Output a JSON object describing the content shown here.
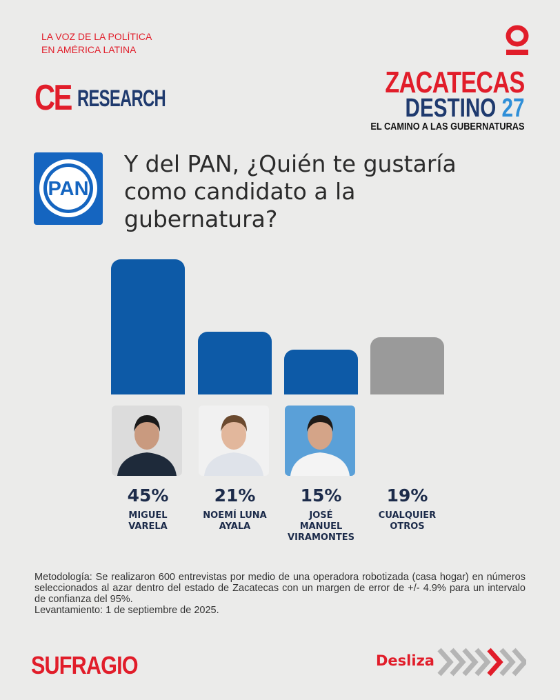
{
  "header": {
    "tagline_1": "LA VOZ DE LA POLÍTICA",
    "tagline_2": "EN AMÉRICA LATINA",
    "ce_logo_ce": "CE",
    "ce_logo_research": "RESEARCH",
    "series_title_1": "ZACATECAS",
    "series_title_2": "DESTINO",
    "series_title_num": "27",
    "series_subtitle": "EL CAMINO A LAS GUBERNATURAS"
  },
  "party_logo": "PAN",
  "chart_data": {
    "type": "bar",
    "title": "Y del PAN, ¿Quién te gustaría como candidato a la gubernatura?",
    "categories": [
      "MIGUEL VARELA",
      "NOEMÍ LUNA AYALA",
      "JOSÉ MANUEL VIRAMONTES",
      "CUALQUIER OTROS"
    ],
    "name_lines": [
      [
        "MIGUEL",
        "VARELA"
      ],
      [
        "NOEMÍ LUNA",
        "AYALA"
      ],
      [
        "JOSÉ",
        "MANUEL",
        "VIRAMONTES"
      ],
      [
        "CUALQUIER",
        "OTROS"
      ]
    ],
    "values": [
      45,
      21,
      15,
      19
    ],
    "labels": [
      "45%",
      "21%",
      "15%",
      "19%"
    ],
    "colors": [
      "#0d5aa7",
      "#0d5aa7",
      "#0d5aa7",
      "#9a9a9a"
    ],
    "ylim": [
      0,
      45
    ],
    "unit": "%",
    "grid": false
  },
  "methodology": "Metodología: Se realizaron 600 entrevistas por medio de una operadora robotizada (casa hogar) en números seleccionados al azar dentro del estado de Zacatecas con un margen de error de +/- 4.9% para un intervalo de confianza del 95%.",
  "fieldwork": "Levantamiento: 1 de septiembre de 2025.",
  "footer": {
    "brand": "SUFRAGIO",
    "swipe_label": "Desliza"
  }
}
